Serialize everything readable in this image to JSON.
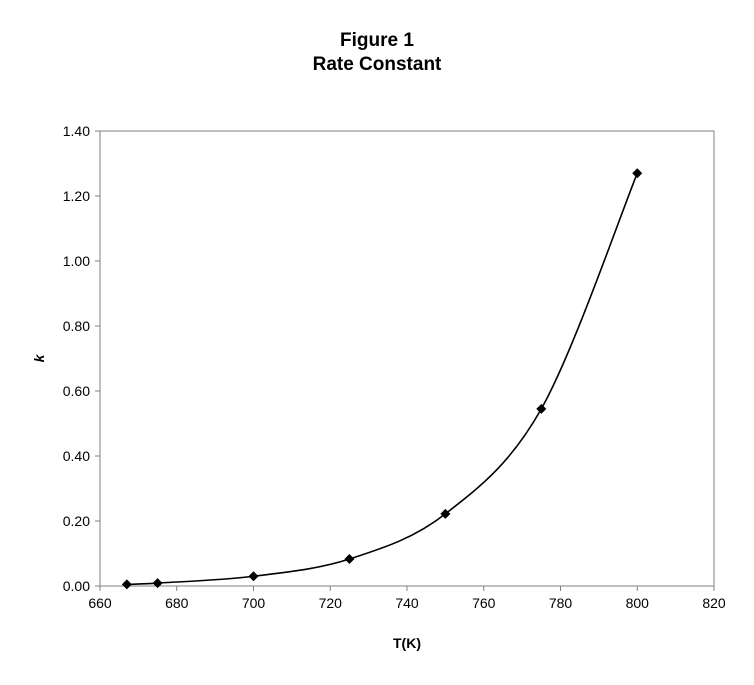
{
  "chart_data": {
    "type": "scatter",
    "title": "Figure 1",
    "subtitle": "Rate Constant",
    "xlabel": "T(K)",
    "ylabel": "k",
    "xlim": [
      660,
      820
    ],
    "ylim": [
      0,
      1.4
    ],
    "x_ticks": [
      "660",
      "680",
      "700",
      "720",
      "740",
      "760",
      "780",
      "800",
      "820"
    ],
    "y_ticks": [
      "0.00",
      "0.20",
      "0.40",
      "0.60",
      "0.80",
      "1.00",
      "1.20",
      "1.40"
    ],
    "grid": false,
    "legend": "none",
    "series": [
      {
        "x": [
          667,
          675,
          700,
          725,
          750,
          775,
          800
        ],
        "y": [
          0.005,
          0.009,
          0.03,
          0.083,
          0.222,
          0.545,
          1.27
        ],
        "marker": "diamond",
        "line": "smooth",
        "color": "#000000"
      }
    ]
  }
}
